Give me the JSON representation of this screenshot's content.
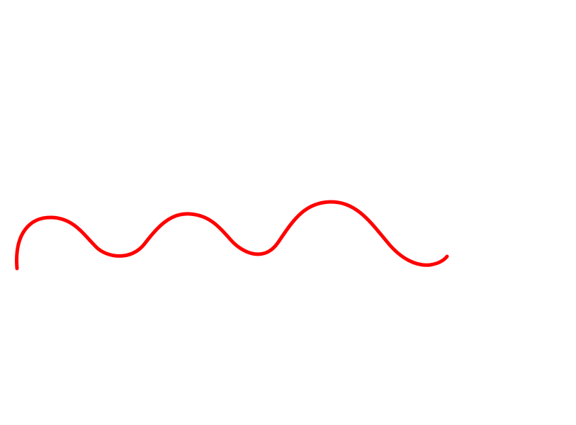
{
  "drawing": {
    "stroke_color": "#ff0000",
    "background_color": "#ffffff",
    "shape": "wavy-line"
  }
}
